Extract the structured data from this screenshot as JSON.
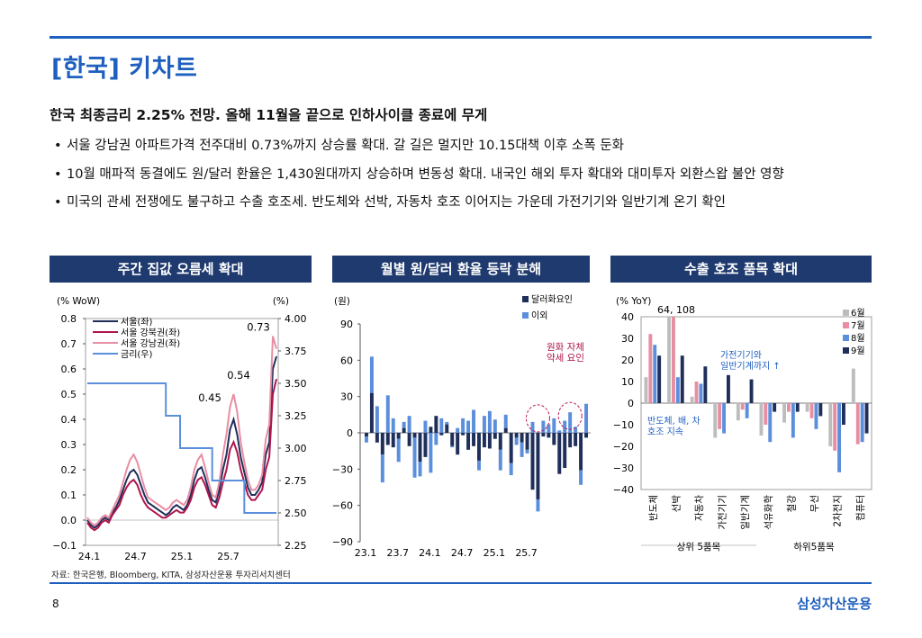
{
  "title": "[한국] 키차트",
  "headline": "한국 최종금리 2.25% 전망. 올해 11월을 끝으로 인하사이클 종료에 무게",
  "bullets": [
    "서울 강남권 아파트가격 전주대비 0.73%까지 상승률 확대. 갈 길은 멀지만 10.15대책 이후 소폭 둔화",
    "10월 매파적 동결에도 원/달러 환율은 1,430원대까지 상승하며 변동성 확대. 내국인 해외 투자 확대와 대미투자 외환스왑 불안 영향",
    "미국의 관세 전쟁에도 불구하고 수출 호조세. 반도체와 선박, 자동차 호조 이어지는 가운데 가전기기와 일반기계 온기 확인"
  ],
  "bullet_marker": "•",
  "panels": [
    "주간 집값 오름세 확대",
    "월별 원/달러 환율 등락 분해",
    "수출 호조 품목 확대"
  ],
  "source": "자료: 한국은행, Bloomberg, KITA, 삼성자산운용 투자리서치센터",
  "page_number": "8",
  "brand": "삼성자산운용",
  "colors": {
    "accent": "#1f5fbf",
    "panel_header": "#1f3a6e"
  },
  "chart_data": [
    {
      "type": "line",
      "left_unit": "(% WoW)",
      "right_unit": "(%)",
      "x_ticks": [
        "24.1",
        "24.7",
        "25.1",
        "25.7"
      ],
      "ylim_left": [
        -0.1,
        0.8
      ],
      "yticks_left": [
        "0.8",
        "0.7",
        "0.6",
        "0.5",
        "0.4",
        "0.3",
        "0.2",
        "0.1",
        "0.0",
        "−0.1"
      ],
      "ylim_right": [
        2.25,
        4.0
      ],
      "yticks_right": [
        "4.00",
        "3.75",
        "3.50",
        "3.25",
        "3.00",
        "2.75",
        "2.50",
        "2.25"
      ],
      "annotations": [
        "0.73",
        "0.54",
        "0.45"
      ],
      "series": [
        {
          "name": "서울(좌)",
          "color": "#1f2f5a",
          "axis": "left",
          "values": [
            0.0,
            -0.02,
            -0.03,
            -0.02,
            0.0,
            0.01,
            0.0,
            0.03,
            0.05,
            0.08,
            0.12,
            0.16,
            0.19,
            0.2,
            0.18,
            0.14,
            0.1,
            0.07,
            0.06,
            0.05,
            0.04,
            0.03,
            0.02,
            0.03,
            0.05,
            0.06,
            0.05,
            0.04,
            0.06,
            0.1,
            0.16,
            0.2,
            0.21,
            0.17,
            0.12,
            0.08,
            0.07,
            0.12,
            0.2,
            0.26,
            0.36,
            0.4,
            0.34,
            0.25,
            0.19,
            0.13,
            0.1,
            0.1,
            0.12,
            0.15,
            0.26,
            0.31,
            0.6,
            0.65
          ]
        },
        {
          "name": "서울 강북권(좌)",
          "color": "#b0154d",
          "axis": "left",
          "values": [
            -0.01,
            -0.03,
            -0.04,
            -0.03,
            -0.01,
            0.0,
            -0.01,
            0.02,
            0.04,
            0.06,
            0.1,
            0.13,
            0.15,
            0.16,
            0.14,
            0.1,
            0.07,
            0.05,
            0.04,
            0.03,
            0.02,
            0.01,
            0.01,
            0.02,
            0.03,
            0.04,
            0.03,
            0.03,
            0.05,
            0.08,
            0.13,
            0.16,
            0.17,
            0.14,
            0.1,
            0.06,
            0.05,
            0.09,
            0.15,
            0.2,
            0.28,
            0.31,
            0.27,
            0.2,
            0.15,
            0.1,
            0.08,
            0.08,
            0.1,
            0.12,
            0.2,
            0.25,
            0.5,
            0.56
          ]
        },
        {
          "name": "서울 강남권(좌)",
          "color": "#e88ea2",
          "axis": "left",
          "values": [
            0.01,
            -0.01,
            -0.02,
            -0.01,
            0.01,
            0.02,
            0.01,
            0.04,
            0.07,
            0.1,
            0.15,
            0.2,
            0.24,
            0.26,
            0.23,
            0.18,
            0.13,
            0.09,
            0.08,
            0.07,
            0.06,
            0.05,
            0.04,
            0.05,
            0.07,
            0.08,
            0.07,
            0.06,
            0.08,
            0.13,
            0.2,
            0.24,
            0.26,
            0.21,
            0.15,
            0.1,
            0.09,
            0.15,
            0.26,
            0.34,
            0.45,
            0.5,
            0.43,
            0.31,
            0.23,
            0.16,
            0.12,
            0.12,
            0.14,
            0.18,
            0.32,
            0.38,
            0.73,
            0.68
          ]
        },
        {
          "name": "금리(우)",
          "color": "#5b8fdc",
          "axis": "right",
          "values": [
            3.5,
            3.5,
            3.5,
            3.5,
            3.5,
            3.5,
            3.5,
            3.5,
            3.5,
            3.5,
            3.5,
            3.5,
            3.5,
            3.5,
            3.5,
            3.5,
            3.5,
            3.5,
            3.5,
            3.5,
            3.5,
            3.5,
            3.25,
            3.25,
            3.25,
            3.25,
            3.0,
            3.0,
            3.0,
            3.0,
            3.0,
            3.0,
            3.0,
            3.0,
            3.0,
            2.75,
            2.75,
            2.75,
            2.75,
            2.75,
            2.75,
            2.75,
            2.75,
            2.75,
            2.5,
            2.5,
            2.5,
            2.5,
            2.5,
            2.5,
            2.5,
            2.5,
            2.5,
            2.5
          ]
        }
      ]
    },
    {
      "type": "bar",
      "unit": "(원)",
      "x_ticks": [
        "23.1",
        "23.7",
        "24.1",
        "24.7",
        "25.1",
        "25.7"
      ],
      "ylim": [
        -90,
        90
      ],
      "yticks": [
        "90",
        "60",
        "30",
        "0",
        "−30",
        "−60",
        "−90"
      ],
      "annotation": "원화 자체\n약세 요인",
      "series": [
        {
          "name": "달러화요인",
          "color": "#1f2f5a",
          "values": [
            -3,
            33,
            -8,
            -18,
            -10,
            -12,
            -5,
            4,
            -11,
            -4,
            -24,
            -20,
            5,
            14,
            -2,
            7,
            -11,
            -18,
            -2,
            -14,
            -11,
            -23,
            -12,
            -13,
            -5,
            -14,
            4,
            -25,
            -4,
            -8,
            -14,
            -47,
            -55,
            -3,
            -4,
            -10,
            -34,
            -29,
            -12,
            -11,
            -31,
            -4
          ]
        },
        {
          "name": "이외",
          "color": "#5b8fdc",
          "values": [
            -5,
            30,
            22,
            -23,
            31,
            12,
            -19,
            5,
            14,
            -33,
            -12,
            10,
            -33,
            -10,
            12,
            2,
            -1,
            4,
            12,
            10,
            19,
            -8,
            14,
            18,
            11,
            -17,
            11,
            -10,
            -6,
            -12,
            -3,
            9,
            -10,
            10,
            7,
            12,
            2,
            10,
            17,
            5,
            -12,
            24
          ]
        }
      ]
    },
    {
      "type": "bar",
      "unit": "(% YoY)",
      "ylim": [
        -40,
        40
      ],
      "yticks": [
        "40",
        "30",
        "20",
        "10",
        "0",
        "−10",
        "−20",
        "−30",
        "−40"
      ],
      "categories": [
        "반도체",
        "선박",
        "자동차",
        "가전기기",
        "일반기계",
        "석유화학",
        "철강",
        "무선",
        "2차전지",
        "컴퓨터"
      ],
      "group_labels": [
        "상위 5품목",
        "하위5품목"
      ],
      "annotations": [
        "64, 108",
        "가전기기와\n일반기계까지 ↑",
        "반도체, 배, 차\n호조 지속"
      ],
      "series": [
        {
          "name": "6월",
          "color": "#bdbdbd",
          "values": [
            12,
            40,
            3,
            -16,
            -8,
            -15,
            -9,
            -4,
            -20,
            16
          ]
        },
        {
          "name": "7월",
          "color": "#e88ea2",
          "values": [
            32,
            40,
            10,
            -12,
            -3,
            -10,
            -4,
            -7,
            -22,
            -19
          ]
        },
        {
          "name": "8월",
          "color": "#5b8fdc",
          "values": [
            27,
            12,
            9,
            -14,
            -7,
            -18,
            -16,
            -12,
            -32,
            -18
          ]
        },
        {
          "name": "9월",
          "color": "#1f2f5a",
          "values": [
            22,
            22,
            17,
            13,
            11,
            -4,
            -4,
            -6,
            -10,
            -14
          ]
        }
      ]
    }
  ]
}
